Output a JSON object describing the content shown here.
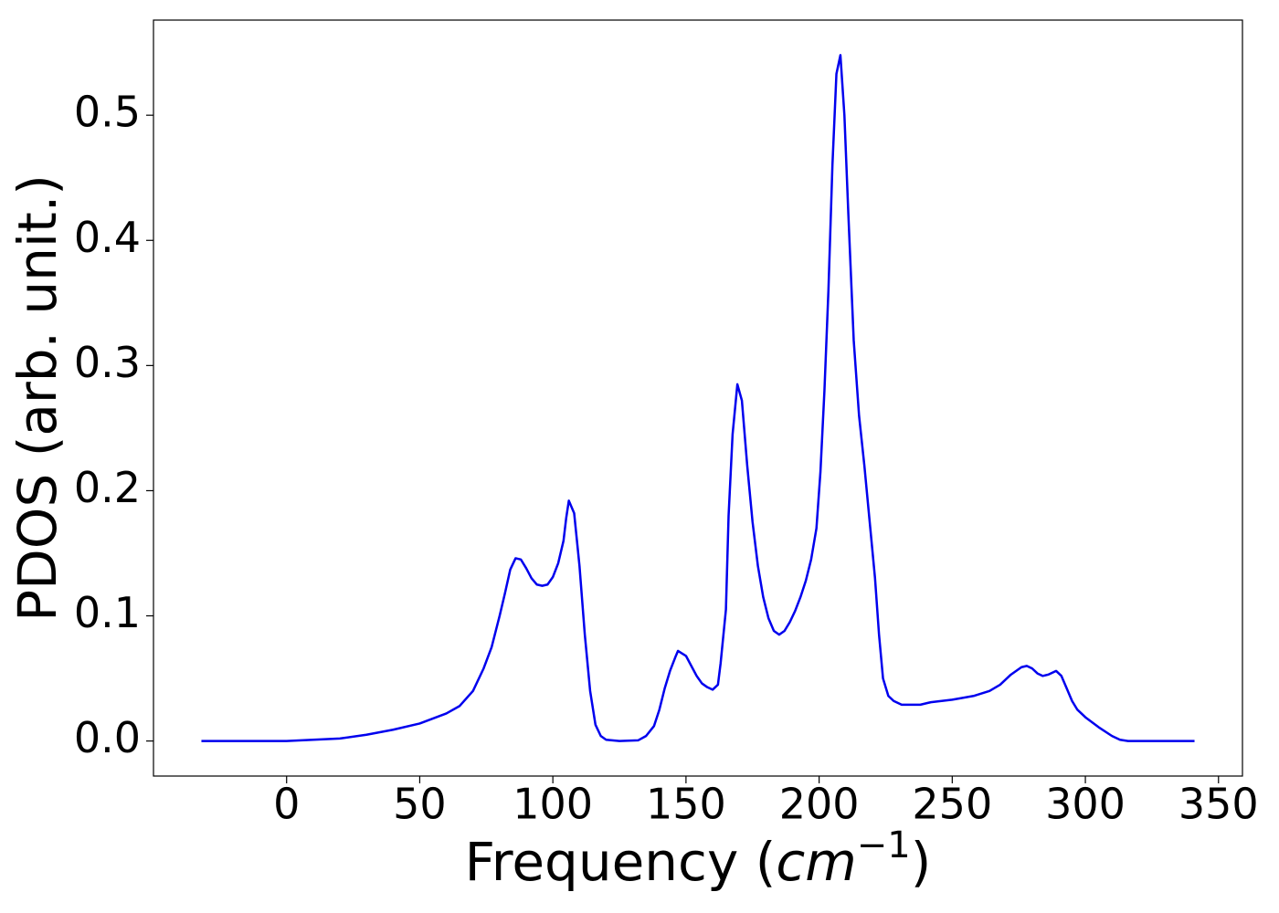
{
  "chart_data": {
    "type": "line",
    "x_label": [
      "Frequency (",
      "cm",
      "−1",
      ")"
    ],
    "y_label": "PDOS (arb. unit.)",
    "color": "#0000ee",
    "x": [
      -32,
      0,
      10,
      20,
      30,
      40,
      50,
      60,
      65,
      70,
      74,
      77,
      80,
      82,
      84,
      86,
      88,
      90,
      92,
      94,
      96,
      98,
      100,
      102,
      104,
      105,
      106,
      108,
      110,
      112,
      114,
      116,
      118,
      120,
      125,
      132,
      135,
      138,
      140,
      142,
      144,
      146,
      147,
      150,
      152,
      154,
      156,
      158,
      160,
      162,
      163,
      165,
      166,
      167.5,
      169.3,
      171,
      173,
      175,
      177,
      179,
      181,
      183,
      185,
      187,
      189,
      191,
      193,
      195,
      197,
      199,
      200.5,
      202,
      203.5,
      205,
      206.5,
      208,
      209.5,
      211,
      213,
      215,
      217,
      219,
      221,
      222.5,
      224,
      226,
      228,
      231,
      238,
      242,
      250,
      258,
      264,
      268,
      272,
      276,
      278,
      280,
      282,
      284,
      286,
      289,
      291,
      293,
      295,
      297,
      300,
      305,
      310,
      313,
      316,
      341
    ],
    "values": [
      0,
      0,
      0.001,
      0.002,
      0.005,
      0.009,
      0.014,
      0.022,
      0.028,
      0.04,
      0.058,
      0.075,
      0.1,
      0.118,
      0.137,
      0.146,
      0.145,
      0.138,
      0.13,
      0.125,
      0.124,
      0.125,
      0.131,
      0.142,
      0.16,
      0.178,
      0.192,
      0.182,
      0.14,
      0.085,
      0.04,
      0.013,
      0.004,
      0.001,
      0,
      0.0005,
      0.004,
      0.012,
      0.025,
      0.042,
      0.056,
      0.067,
      0.072,
      0.068,
      0.06,
      0.052,
      0.046,
      0.043,
      0.041,
      0.045,
      0.062,
      0.105,
      0.18,
      0.245,
      0.285,
      0.272,
      0.22,
      0.175,
      0.14,
      0.115,
      0.098,
      0.088,
      0.085,
      0.088,
      0.095,
      0.104,
      0.115,
      0.128,
      0.145,
      0.17,
      0.215,
      0.28,
      0.36,
      0.46,
      0.533,
      0.548,
      0.5,
      0.42,
      0.32,
      0.26,
      0.22,
      0.175,
      0.13,
      0.085,
      0.05,
      0.036,
      0.032,
      0.029,
      0.029,
      0.031,
      0.033,
      0.036,
      0.04,
      0.045,
      0.053,
      0.059,
      0.06,
      0.058,
      0.054,
      0.052,
      0.053,
      0.056,
      0.052,
      0.042,
      0.032,
      0.025,
      0.019,
      0.011,
      0.004,
      0.001,
      0,
      0
    ],
    "xlim": [
      -50,
      359
    ],
    "ylim": [
      -0.028,
      0.576
    ],
    "xticks": [
      0,
      50,
      100,
      150,
      200,
      250,
      300,
      350
    ],
    "yticks": [
      {
        "value": 0,
        "label": "0.0"
      },
      0.1,
      0.2,
      0.3,
      0.4,
      0.5
    ]
  }
}
